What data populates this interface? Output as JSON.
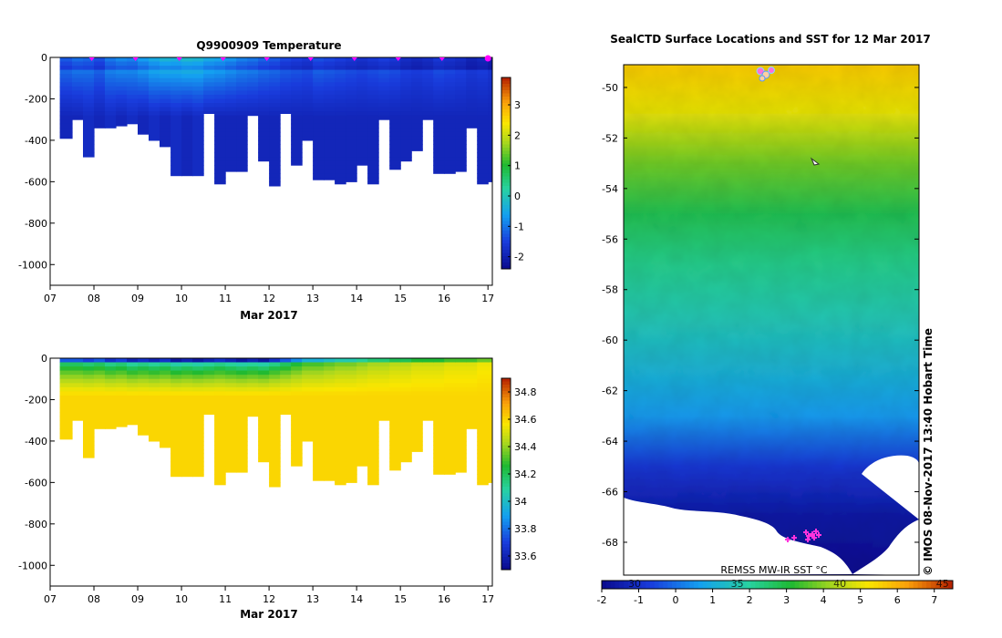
{
  "chart_data": [
    {
      "type": "heatmap",
      "title": "Q9900909  Temperature",
      "xlabel": "Mar 2017",
      "ylabel": "",
      "x_ticks": [
        "07",
        "08",
        "09",
        "10",
        "11",
        "12",
        "13",
        "14",
        "15",
        "16",
        "17"
      ],
      "y_ticks": [
        "0",
        "-200",
        "-400",
        "-600",
        "-800",
        "-1000"
      ],
      "ylim": [
        -1100,
        0
      ],
      "xlim": [
        7,
        17.1
      ],
      "colorbar": {
        "ticks": [
          "3",
          "2",
          "1",
          "0",
          "-1",
          "-2"
        ],
        "range": [
          -2.4,
          3.9
        ]
      },
      "profile_times": [
        7.22,
        7.5,
        7.75,
        8.0,
        8.25,
        8.5,
        8.75,
        9.0,
        9.25,
        9.5,
        9.75,
        10.0,
        10.25,
        10.5,
        10.75,
        11.0,
        11.25,
        11.5,
        11.75,
        12.0,
        12.25,
        12.5,
        12.75,
        13.0,
        13.25,
        13.5,
        13.75,
        14.0,
        14.25,
        14.5,
        14.75,
        15.0,
        15.25,
        15.5,
        15.75,
        16.0,
        16.25,
        16.5,
        16.75,
        17.0
      ],
      "profile_max_depth": [
        -390,
        -300,
        -480,
        -340,
        -340,
        -330,
        -320,
        -370,
        -400,
        -430,
        -570,
        -570,
        -570,
        -270,
        -610,
        -550,
        -550,
        -280,
        -500,
        -620,
        -270,
        -520,
        -400,
        -590,
        -590,
        -610,
        -600,
        -520,
        -610,
        -300,
        -540,
        -500,
        -450,
        -300,
        -560,
        -560,
        -550,
        -340,
        -610,
        -600
      ],
      "marker_times": [
        7.95,
        8.95,
        9.95,
        10.95,
        11.95,
        12.95,
        13.95,
        14.95,
        15.95,
        17.0
      ],
      "series": [
        {
          "name": "temperature_surface",
          "values": [
            -0.6,
            -0.4,
            -0.5,
            -0.7,
            -0.3,
            -0.1,
            -0.2,
            0.1,
            0.3,
            0.5,
            0.4,
            0.6,
            0.5,
            0.3,
            0.2,
            0.0,
            -0.2,
            -0.3,
            -0.5,
            -0.6,
            -0.8,
            -0.9,
            -1.0,
            -0.7,
            -0.8,
            -0.9,
            -1.0,
            -1.1,
            -1.0,
            -0.9,
            -1.0,
            -1.2,
            -1.3,
            -1.2,
            -1.0,
            -1.1,
            -1.2,
            -1.4,
            -1.3,
            -1.5
          ]
        },
        {
          "name": "temperature_deep",
          "values": [
            -1.9,
            -1.9,
            -1.8,
            -1.9,
            -1.8,
            -1.9,
            -1.8,
            -1.9,
            -1.8,
            -1.9,
            -1.8,
            -1.9,
            -1.8,
            -1.9,
            -1.9,
            -1.9,
            -1.9,
            -1.9,
            -1.9,
            -1.9,
            -1.9,
            -1.9,
            -1.9,
            -1.9,
            -1.9,
            -1.9,
            -1.9,
            -1.9,
            -1.9,
            -1.9,
            -1.9,
            -1.9,
            -1.9,
            -1.9,
            -1.9,
            -1.9,
            -1.9,
            -1.9,
            -1.9,
            -1.9
          ]
        }
      ]
    },
    {
      "type": "heatmap",
      "title": "",
      "xlabel": "Mar 2017",
      "ylabel": "",
      "x_ticks": [
        "07",
        "08",
        "09",
        "10",
        "11",
        "12",
        "13",
        "14",
        "15",
        "16",
        "17"
      ],
      "y_ticks": [
        "0",
        "-200",
        "-400",
        "-600",
        "-800",
        "-1000"
      ],
      "ylim": [
        -1100,
        0
      ],
      "xlim": [
        7,
        17.1
      ],
      "colorbar": {
        "ticks": [
          "34.8",
          "34.6",
          "34.4",
          "34.2",
          "34",
          "33.8",
          "33.6"
        ],
        "range": [
          33.5,
          34.9
        ]
      },
      "series": [
        {
          "name": "salinity_surface",
          "values": [
            33.9,
            33.9,
            33.85,
            33.9,
            33.8,
            33.85,
            33.75,
            33.8,
            33.75,
            33.8,
            33.7,
            33.75,
            33.7,
            33.75,
            33.8,
            33.75,
            33.7,
            33.75,
            33.7,
            33.8,
            33.9,
            34.0,
            34.1,
            34.1,
            34.15,
            34.2,
            34.2,
            34.25,
            34.3,
            34.3,
            34.35,
            34.35,
            34.4,
            34.4,
            34.4,
            34.45,
            34.45,
            34.45,
            34.5,
            34.5
          ]
        },
        {
          "name": "salinity_deep",
          "values": [
            34.6,
            34.6,
            34.6,
            34.6,
            34.6,
            34.6,
            34.6,
            34.6,
            34.6,
            34.6,
            34.6,
            34.6,
            34.6,
            34.6,
            34.6,
            34.6,
            34.6,
            34.6,
            34.6,
            34.6,
            34.6,
            34.6,
            34.6,
            34.6,
            34.6,
            34.6,
            34.6,
            34.6,
            34.6,
            34.6,
            34.6,
            34.6,
            34.6,
            34.6,
            34.6,
            34.6,
            34.6,
            34.6,
            34.6,
            34.6
          ]
        }
      ]
    },
    {
      "type": "heatmap",
      "title": "SealCTD Surface Locations and SST for 12 Mar 2017",
      "xlabel": "",
      "ylabel": "",
      "y_ticks": [
        "-50",
        "-52",
        "-54",
        "-56",
        "-58",
        "-60",
        "-62",
        "-64",
        "-66",
        "-68"
      ],
      "ylim": [
        -69.3,
        -49.1
      ],
      "source_label": "REMSS MW-IR SST °C",
      "timestamp": "© IMOS 08-Nov-2017 13:40 Hobart Time",
      "colorbar": {
        "celsius_ticks": [
          "-2",
          "-1",
          "0",
          "1",
          "2",
          "3",
          "4",
          "5",
          "6",
          "7"
        ],
        "fahrenheit_ticks": [
          "30",
          "35",
          "40",
          "45"
        ],
        "range_c": [
          -2,
          7.5
        ]
      },
      "sst_by_latitude": {
        "lat": [
          -49.2,
          -51,
          -53,
          -55,
          -57,
          -59,
          -61,
          -63,
          -65,
          -67,
          -69
        ],
        "sst": [
          5.6,
          5.0,
          3.8,
          2.8,
          2.2,
          1.7,
          1.2,
          0.6,
          -0.8,
          -1.6,
          -1.9
        ]
      },
      "seal_positions": [
        {
          "lat": -68.4,
          "label": "cluster"
        },
        {
          "lat": -49.6,
          "label": "cluster"
        }
      ]
    }
  ]
}
